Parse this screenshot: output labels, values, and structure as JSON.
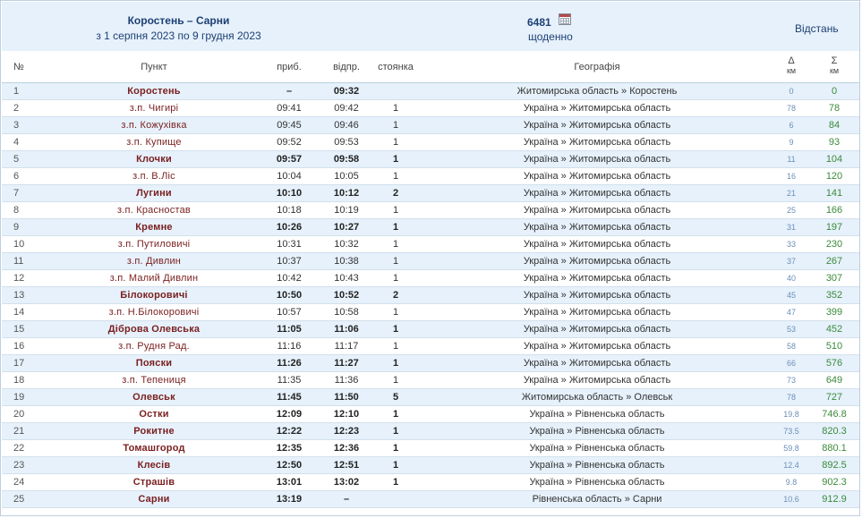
{
  "header": {
    "route_title": "Коростень – Сарни",
    "route_dates": "з 1 серпня 2023 по 9 грудня 2023",
    "train_number": "6481",
    "train_frequency": "щоденно",
    "distance_label": "Відстань",
    "icon": "calendar-icon"
  },
  "columns": {
    "num": "№",
    "station": "Пункт",
    "arrival": "приб.",
    "departure": "відпр.",
    "stop": "стоянка",
    "geography": "Географія",
    "delta": "Δ",
    "delta_unit": "км",
    "sum": "Σ",
    "sum_unit": "км"
  },
  "colors": {
    "row_alt": "#e6f1fb",
    "station_name": "#7a1f1f",
    "header_text": "#1d3f73",
    "delta": "#6b8fb8",
    "sum": "#3b8a3b"
  },
  "stops": [
    {
      "num": "1",
      "name": "Коростень",
      "arr": "–",
      "dep": "09:32",
      "stop": "",
      "geo": "Житомирська область » Коростень",
      "delta": "0",
      "sum": "0",
      "major": true
    },
    {
      "num": "2",
      "name": "з.п. Чигирі",
      "arr": "09:41",
      "dep": "09:42",
      "stop": "1",
      "geo": "Україна » Житомирська область",
      "delta": "78",
      "sum": "78",
      "major": false
    },
    {
      "num": "3",
      "name": "з.п. Кожухівка",
      "arr": "09:45",
      "dep": "09:46",
      "stop": "1",
      "geo": "Україна » Житомирська область",
      "delta": "6",
      "sum": "84",
      "major": false
    },
    {
      "num": "4",
      "name": "з.п. Купище",
      "arr": "09:52",
      "dep": "09:53",
      "stop": "1",
      "geo": "Україна » Житомирська область",
      "delta": "9",
      "sum": "93",
      "major": false
    },
    {
      "num": "5",
      "name": "Клочки",
      "arr": "09:57",
      "dep": "09:58",
      "stop": "1",
      "geo": "Україна » Житомирська область",
      "delta": "11",
      "sum": "104",
      "major": true
    },
    {
      "num": "6",
      "name": "з.п. В.Ліс",
      "arr": "10:04",
      "dep": "10:05",
      "stop": "1",
      "geo": "Україна » Житомирська область",
      "delta": "16",
      "sum": "120",
      "major": false
    },
    {
      "num": "7",
      "name": "Лугини",
      "arr": "10:10",
      "dep": "10:12",
      "stop": "2",
      "geo": "Україна » Житомирська область",
      "delta": "21",
      "sum": "141",
      "major": true
    },
    {
      "num": "8",
      "name": "з.п. Красностав",
      "arr": "10:18",
      "dep": "10:19",
      "stop": "1",
      "geo": "Україна » Житомирська область",
      "delta": "25",
      "sum": "166",
      "major": false
    },
    {
      "num": "9",
      "name": "Кремне",
      "arr": "10:26",
      "dep": "10:27",
      "stop": "1",
      "geo": "Україна » Житомирська область",
      "delta": "31",
      "sum": "197",
      "major": true
    },
    {
      "num": "10",
      "name": "з.п. Путиловичі",
      "arr": "10:31",
      "dep": "10:32",
      "stop": "1",
      "geo": "Україна » Житомирська область",
      "delta": "33",
      "sum": "230",
      "major": false
    },
    {
      "num": "11",
      "name": "з.п. Дивлин",
      "arr": "10:37",
      "dep": "10:38",
      "stop": "1",
      "geo": "Україна » Житомирська область",
      "delta": "37",
      "sum": "267",
      "major": false
    },
    {
      "num": "12",
      "name": "з.п. Малий Дивлин",
      "arr": "10:42",
      "dep": "10:43",
      "stop": "1",
      "geo": "Україна » Житомирська область",
      "delta": "40",
      "sum": "307",
      "major": false
    },
    {
      "num": "13",
      "name": "Білокоровичі",
      "arr": "10:50",
      "dep": "10:52",
      "stop": "2",
      "geo": "Україна » Житомирська область",
      "delta": "45",
      "sum": "352",
      "major": true
    },
    {
      "num": "14",
      "name": "з.п. Н.Білокоровичі",
      "arr": "10:57",
      "dep": "10:58",
      "stop": "1",
      "geo": "Україна » Житомирська область",
      "delta": "47",
      "sum": "399",
      "major": false
    },
    {
      "num": "15",
      "name": "Діброва Олевська",
      "arr": "11:05",
      "dep": "11:06",
      "stop": "1",
      "geo": "Україна » Житомирська область",
      "delta": "53",
      "sum": "452",
      "major": true
    },
    {
      "num": "16",
      "name": "з.п. Рудня Рад.",
      "arr": "11:16",
      "dep": "11:17",
      "stop": "1",
      "geo": "Україна » Житомирська область",
      "delta": "58",
      "sum": "510",
      "major": false
    },
    {
      "num": "17",
      "name": "Пояски",
      "arr": "11:26",
      "dep": "11:27",
      "stop": "1",
      "geo": "Україна » Житомирська область",
      "delta": "66",
      "sum": "576",
      "major": true
    },
    {
      "num": "18",
      "name": "з.п. Тепениця",
      "arr": "11:35",
      "dep": "11:36",
      "stop": "1",
      "geo": "Україна » Житомирська область",
      "delta": "73",
      "sum": "649",
      "major": false
    },
    {
      "num": "19",
      "name": "Олевськ",
      "arr": "11:45",
      "dep": "11:50",
      "stop": "5",
      "geo": "Житомирська область » Олевськ",
      "delta": "78",
      "sum": "727",
      "major": true
    },
    {
      "num": "20",
      "name": "Остки",
      "arr": "12:09",
      "dep": "12:10",
      "stop": "1",
      "geo": "Україна » Рівненська область",
      "delta": "19.8",
      "sum": "746.8",
      "major": true
    },
    {
      "num": "21",
      "name": "Рокитне",
      "arr": "12:22",
      "dep": "12:23",
      "stop": "1",
      "geo": "Україна » Рівненська область",
      "delta": "73.5",
      "sum": "820.3",
      "major": true
    },
    {
      "num": "22",
      "name": "Томашгород",
      "arr": "12:35",
      "dep": "12:36",
      "stop": "1",
      "geo": "Україна » Рівненська область",
      "delta": "59.8",
      "sum": "880.1",
      "major": true
    },
    {
      "num": "23",
      "name": "Клесів",
      "arr": "12:50",
      "dep": "12:51",
      "stop": "1",
      "geo": "Україна » Рівненська область",
      "delta": "12.4",
      "sum": "892.5",
      "major": true
    },
    {
      "num": "24",
      "name": "Страшів",
      "arr": "13:01",
      "dep": "13:02",
      "stop": "1",
      "geo": "Україна » Рівненська область",
      "delta": "9.8",
      "sum": "902.3",
      "major": true
    },
    {
      "num": "25",
      "name": "Сарни",
      "arr": "13:19",
      "dep": "–",
      "stop": "",
      "geo": "Рівненська область » Сарни",
      "delta": "10.6",
      "sum": "912.9",
      "major": true
    }
  ]
}
